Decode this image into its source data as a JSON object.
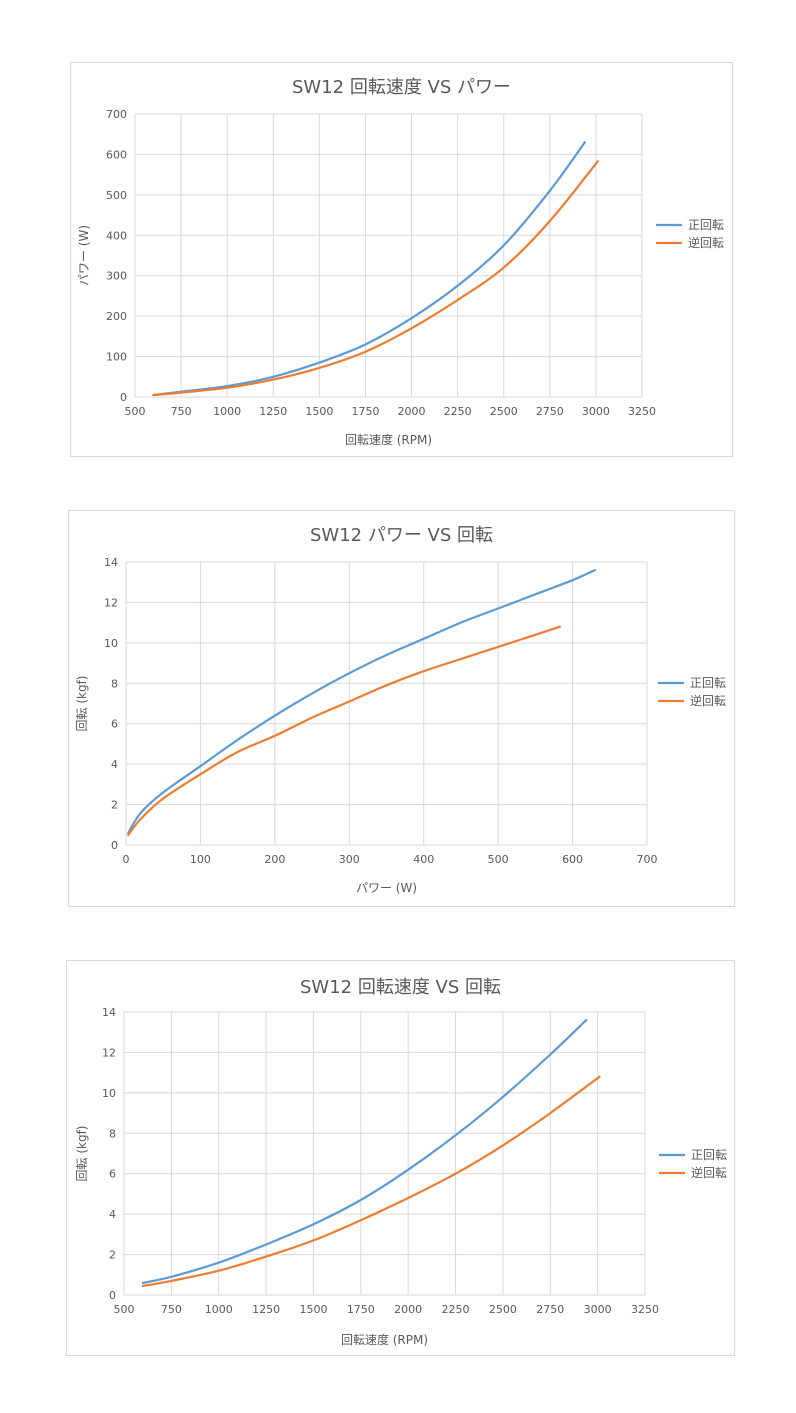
{
  "chart_data": [
    {
      "type": "line",
      "title": "SW12 回転速度 VS パワー",
      "xlabel": "回転速度 (RPM)",
      "ylabel": "パワー (W)",
      "xlim": [
        500,
        3250
      ],
      "ylim": [
        0,
        700
      ],
      "xticks": [
        "500",
        "750",
        "1000",
        "1250",
        "1500",
        "1750",
        "2000",
        "2250",
        "2500",
        "2750",
        "3000",
        "3250"
      ],
      "yticks": [
        "0",
        "100",
        "200",
        "300",
        "400",
        "500",
        "600",
        "700"
      ],
      "grid": true,
      "legend_position": "right",
      "series": [
        {
          "name": "正回転",
          "color": "#5b9bd5",
          "x": [
            600,
            750,
            1000,
            1250,
            1500,
            1750,
            2000,
            2250,
            2500,
            2750,
            2940
          ],
          "y": [
            5,
            13,
            27,
            50,
            85,
            130,
            195,
            275,
            375,
            510,
            630
          ]
        },
        {
          "name": "逆回転",
          "color": "#ed7d31",
          "x": [
            600,
            750,
            1000,
            1250,
            1500,
            1750,
            2000,
            2250,
            2500,
            2750,
            3010
          ],
          "y": [
            5,
            11,
            23,
            43,
            72,
            112,
            170,
            240,
            320,
            435,
            583
          ]
        }
      ]
    },
    {
      "type": "line",
      "title": "SW12 パワー VS 回転",
      "xlabel": "パワー (W)",
      "ylabel": "回転 (kgf)",
      "xlim": [
        0,
        700
      ],
      "ylim": [
        0,
        14
      ],
      "xticks": [
        "0",
        "100",
        "200",
        "300",
        "400",
        "500",
        "600",
        "700"
      ],
      "yticks": [
        "0",
        "2",
        "4",
        "6",
        "8",
        "10",
        "12",
        "14"
      ],
      "grid": true,
      "legend_position": "right",
      "series": [
        {
          "name": "正回転",
          "color": "#5b9bd5",
          "x": [
            3,
            20,
            50,
            100,
            150,
            200,
            250,
            300,
            350,
            400,
            450,
            500,
            550,
            600,
            630
          ],
          "y": [
            0.6,
            1.6,
            2.6,
            3.9,
            5.2,
            6.4,
            7.5,
            8.5,
            9.4,
            10.2,
            11.0,
            11.7,
            12.4,
            13.1,
            13.6
          ]
        },
        {
          "name": "逆回転",
          "color": "#ed7d31",
          "x": [
            3,
            20,
            50,
            100,
            150,
            200,
            250,
            300,
            350,
            400,
            450,
            500,
            550,
            583
          ],
          "y": [
            0.5,
            1.3,
            2.3,
            3.5,
            4.6,
            5.4,
            6.3,
            7.1,
            7.9,
            8.6,
            9.2,
            9.8,
            10.4,
            10.8
          ]
        }
      ]
    },
    {
      "type": "line",
      "title": "SW12 回転速度 VS 回転",
      "xlabel": "回転速度 (RPM)",
      "ylabel": "回転 (kgf)",
      "xlim": [
        500,
        3250
      ],
      "ylim": [
        0,
        14
      ],
      "xticks": [
        "500",
        "750",
        "1000",
        "1250",
        "1500",
        "1750",
        "2000",
        "2250",
        "2500",
        "2750",
        "3000",
        "3250"
      ],
      "yticks": [
        "0",
        "2",
        "4",
        "6",
        "8",
        "10",
        "12",
        "14"
      ],
      "grid": true,
      "legend_position": "right",
      "series": [
        {
          "name": "正回転",
          "color": "#5b9bd5",
          "x": [
            600,
            750,
            1000,
            1250,
            1500,
            1750,
            2000,
            2250,
            2500,
            2750,
            2940
          ],
          "y": [
            0.6,
            0.9,
            1.6,
            2.5,
            3.5,
            4.7,
            6.2,
            7.9,
            9.8,
            11.9,
            13.6
          ]
        },
        {
          "name": "逆回転",
          "color": "#ed7d31",
          "x": [
            600,
            750,
            1000,
            1250,
            1500,
            1750,
            2000,
            2250,
            2500,
            2750,
            3010
          ],
          "y": [
            0.45,
            0.7,
            1.2,
            1.9,
            2.7,
            3.7,
            4.8,
            6.0,
            7.4,
            9.0,
            10.8
          ]
        }
      ]
    }
  ]
}
